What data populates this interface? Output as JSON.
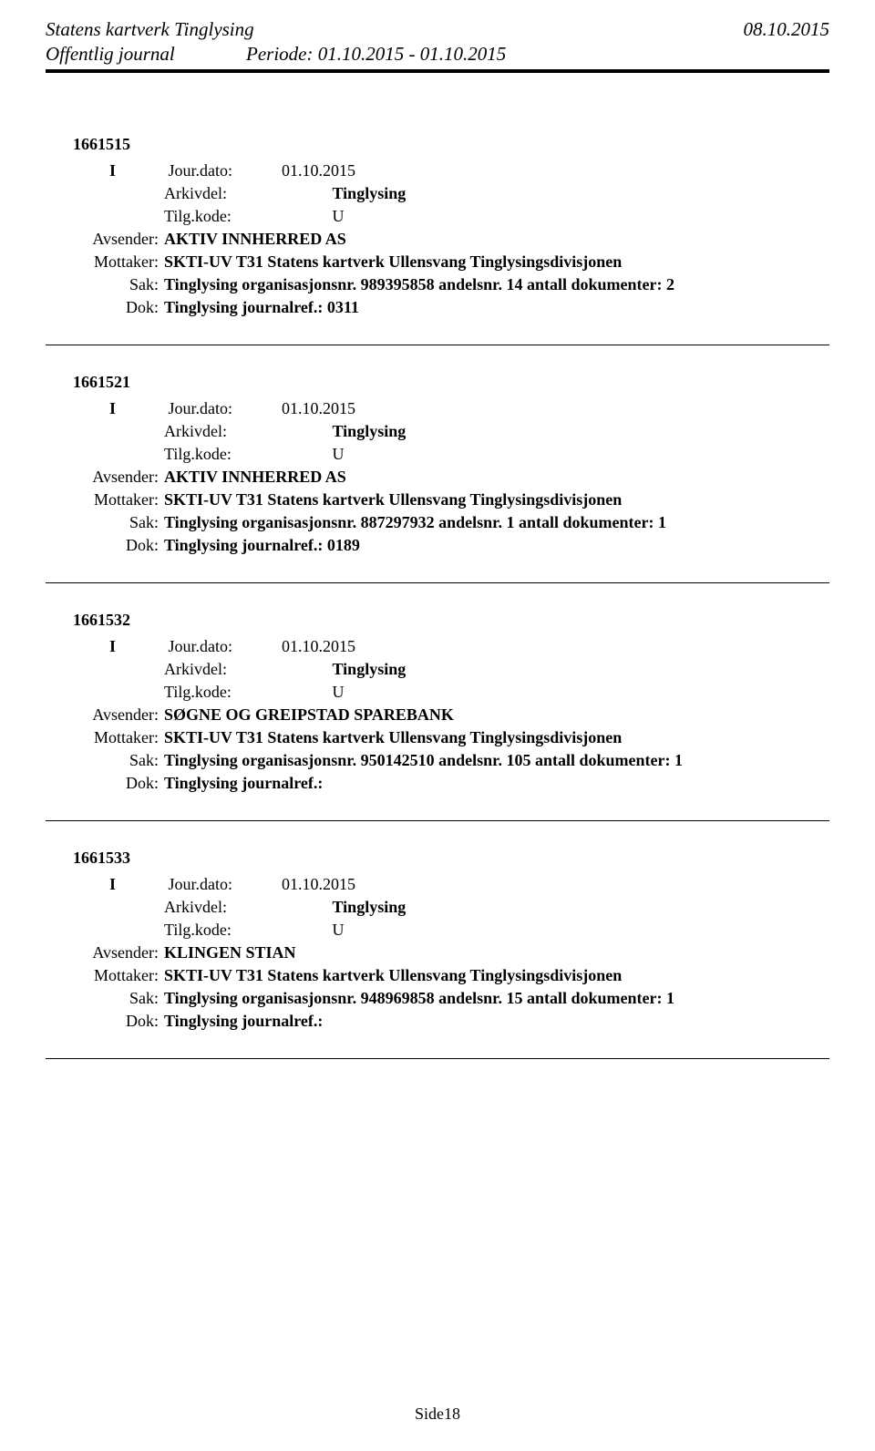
{
  "header": {
    "org": "Statens kartverk Tinglysing",
    "date": "08.10.2015",
    "journal": "Offentlig journal",
    "period_label": "Periode:",
    "period_value": "01.10.2015 - 01.10.2015"
  },
  "labels": {
    "jour_dato": "Jour.dato:",
    "arkivdel": "Arkivdel:",
    "tilg_kode": "Tilg.kode:",
    "avsender": "Avsender:",
    "mottaker": "Mottaker:",
    "sak": "Sak:",
    "dok": "Dok:"
  },
  "entries": [
    {
      "id": "1661515",
      "type": "I",
      "jour_dato": "01.10.2015",
      "arkivdel": "Tinglysing",
      "tilg_kode": "U",
      "avsender": "AKTIV INNHERRED AS",
      "mottaker": "SKTI-UV T31 Statens kartverk Ullensvang Tinglysingsdivisjonen",
      "sak": "Tinglysing organisasjonsnr. 989395858 andelsnr. 14 antall dokumenter: 2",
      "dok": "Tinglysing journalref.: 0311"
    },
    {
      "id": "1661521",
      "type": "I",
      "jour_dato": "01.10.2015",
      "arkivdel": "Tinglysing",
      "tilg_kode": "U",
      "avsender": "AKTIV INNHERRED AS",
      "mottaker": "SKTI-UV T31 Statens kartverk Ullensvang Tinglysingsdivisjonen",
      "sak": "Tinglysing organisasjonsnr. 887297932 andelsnr. 1 antall dokumenter: 1",
      "dok": "Tinglysing journalref.: 0189"
    },
    {
      "id": "1661532",
      "type": "I",
      "jour_dato": "01.10.2015",
      "arkivdel": "Tinglysing",
      "tilg_kode": "U",
      "avsender": "SØGNE OG GREIPSTAD SPAREBANK",
      "mottaker": "SKTI-UV T31 Statens kartverk Ullensvang Tinglysingsdivisjonen",
      "sak": "Tinglysing organisasjonsnr. 950142510 andelsnr. 105 antall dokumenter: 1",
      "dok": "Tinglysing journalref.:"
    },
    {
      "id": "1661533",
      "type": "I",
      "jour_dato": "01.10.2015",
      "arkivdel": "Tinglysing",
      "tilg_kode": "U",
      "avsender": "KLINGEN STIAN",
      "mottaker": "SKTI-UV T31 Statens kartverk Ullensvang Tinglysingsdivisjonen",
      "sak": "Tinglysing organisasjonsnr. 948969858 andelsnr. 15 antall dokumenter: 1",
      "dok": "Tinglysing journalref.:"
    }
  ],
  "footer": {
    "page": "Side18"
  }
}
